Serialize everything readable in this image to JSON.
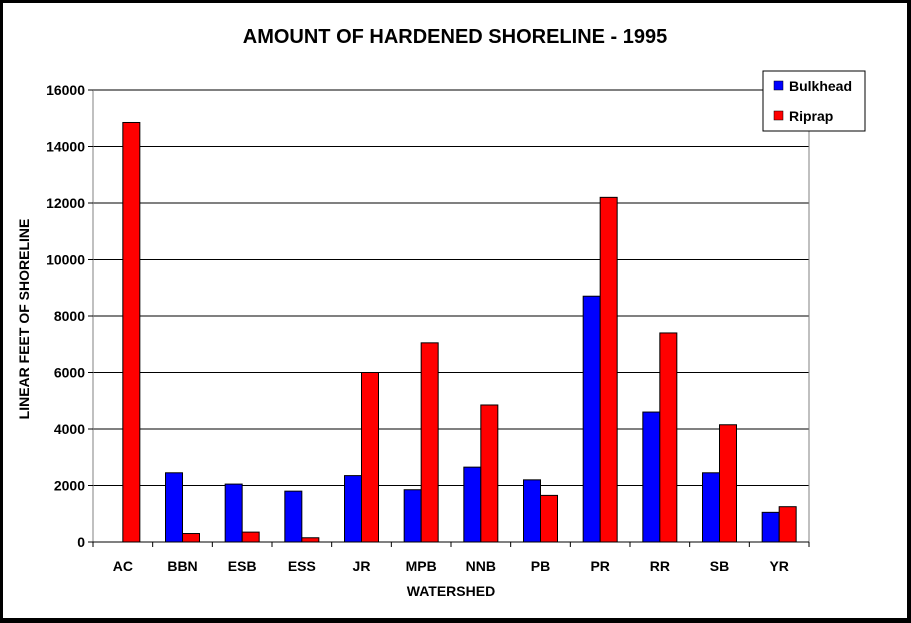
{
  "chart_data": {
    "type": "bar",
    "title": "AMOUNT OF HARDENED SHORELINE - 1995",
    "xlabel": "WATERSHED",
    "ylabel": "LINEAR FEET OF SHORELINE",
    "ylim": [
      0,
      16000
    ],
    "yticks": [
      0,
      2000,
      4000,
      6000,
      8000,
      10000,
      12000,
      14000,
      16000
    ],
    "grid": true,
    "legend_position": "top-right",
    "categories": [
      "AC",
      "BBN",
      "ESB",
      "ESS",
      "JR",
      "MPB",
      "NNB",
      "PB",
      "PR",
      "RR",
      "SB",
      "YR"
    ],
    "series": [
      {
        "name": "Bulkhead",
        "color": "#0000ff",
        "values": [
          0,
          2450,
          2050,
          1800,
          2350,
          1850,
          2650,
          2200,
          8700,
          4600,
          2450,
          1050
        ]
      },
      {
        "name": "Riprap",
        "color": "#ff0000",
        "values": [
          14850,
          300,
          350,
          150,
          6000,
          7050,
          4850,
          1650,
          12200,
          7400,
          4150,
          1250
        ]
      }
    ]
  }
}
